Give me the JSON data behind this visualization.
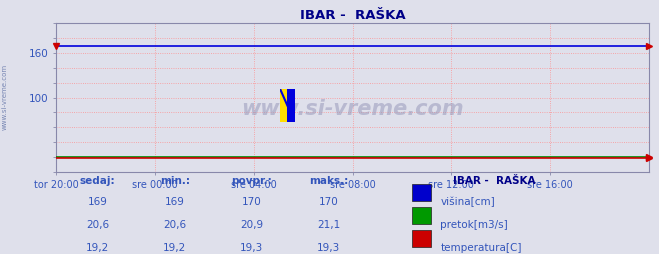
{
  "title": "IBAR -  RAŠKA",
  "bg_color": "#dfe0eb",
  "plot_bg_color": "#dfe0eb",
  "grid_color": "#ff8888",
  "x_labels": [
    "tor 20:00",
    "sre 00:00",
    "sre 04:00",
    "sre 08:00",
    "sre 12:00",
    "sre 16:00"
  ],
  "ylim": [
    0,
    200
  ],
  "ytick_vals": [
    100,
    160
  ],
  "visina_value": 169,
  "pretok_value": 20.6,
  "temp_value": 19.2,
  "line_blue": "#0000dd",
  "line_green": "#008800",
  "line_red": "#cc0000",
  "text_color": "#3355bb",
  "title_color": "#000088",
  "legend_title": "IBAR -  RAŠKA",
  "watermark": "www.si-vreme.com",
  "sidebar_text": "www.si-vreme.com",
  "table_headers": [
    "sedaj:",
    "min.:",
    "povpr.:",
    "maks.:"
  ],
  "row1": [
    "169",
    "169",
    "170",
    "170"
  ],
  "row2": [
    "20,6",
    "20,6",
    "20,9",
    "21,1"
  ],
  "row3": [
    "19,2",
    "19,2",
    "19,3",
    "19,3"
  ],
  "legend_labels": [
    "višina[cm]",
    "pretok[m3/s]",
    "temperatura[C]"
  ],
  "legend_colors": [
    "#0000cc",
    "#009900",
    "#cc0000"
  ]
}
